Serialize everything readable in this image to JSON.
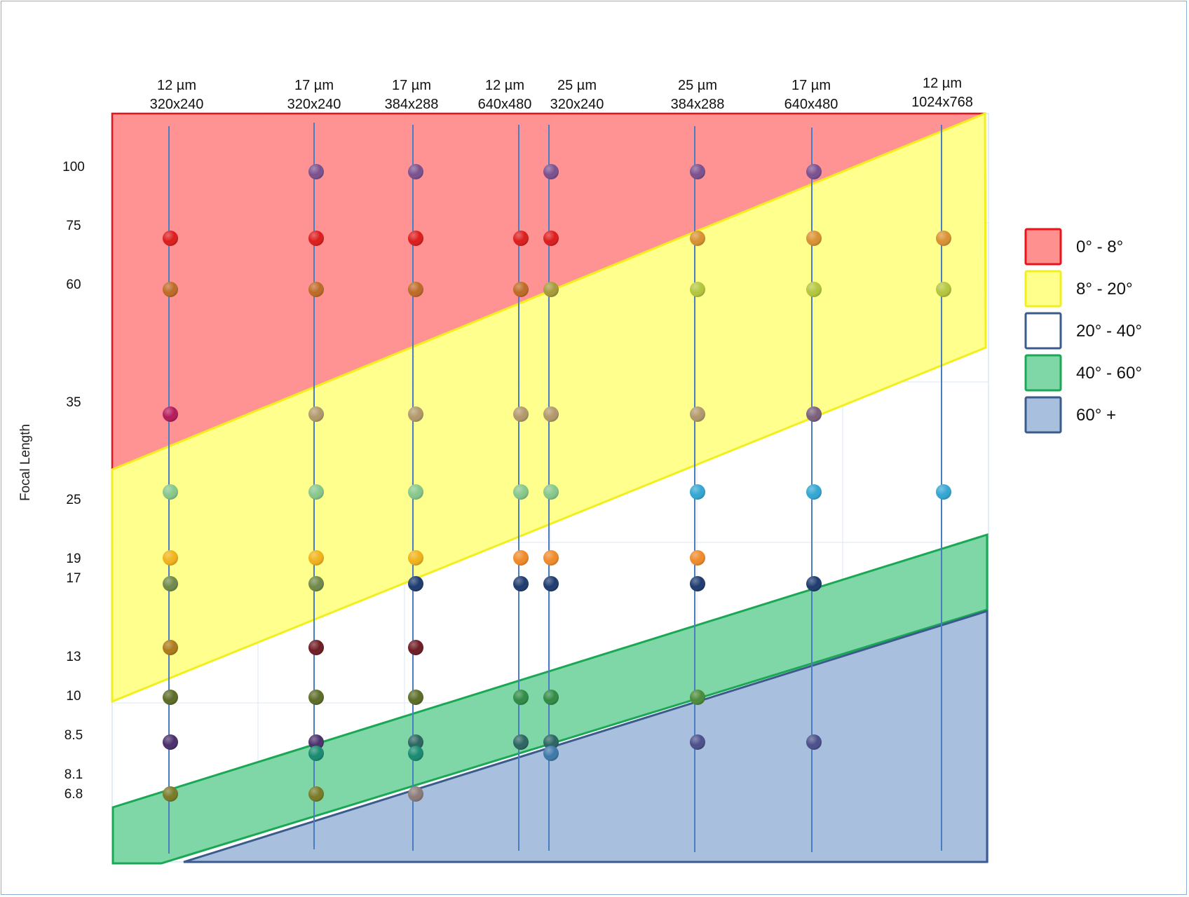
{
  "chart_data": {
    "type": "scatter",
    "ylabel": "Focal Length",
    "x": [
      {
        "line1": "12 µm",
        "line2": "320x240"
      },
      {
        "line1": "17 µm",
        "line2": "320x240"
      },
      {
        "line1": "17 µm",
        "line2": "384x288"
      },
      {
        "line1": "12 µm",
        "line2": "640x480"
      },
      {
        "line1": "25 µm",
        "line2": "320x240"
      },
      {
        "line1": "25 µm",
        "line2": "384x288"
      },
      {
        "line1": "17 µm",
        "line2": "640x480"
      },
      {
        "line1": "12 µm",
        "line2": "1024x768"
      }
    ],
    "y_ticks": [
      "100",
      "75",
      "60",
      "35",
      "25",
      "19",
      "17",
      "13",
      "10",
      "8.5",
      "8.1",
      "6.8"
    ],
    "legend": [
      {
        "label": "0° - 8°",
        "fill": "#ff9090",
        "stroke": "#e8131b"
      },
      {
        "label": "8° - 20°",
        "fill": "#ffff8c",
        "stroke": "#f2ef1e"
      },
      {
        "label": "20° - 40°",
        "fill": "#ffffff",
        "stroke": "#3b5b8c"
      },
      {
        "label": "40° - 60°",
        "fill": "#7fd6a6",
        "stroke": "#1aa855"
      },
      {
        "label": "60° +",
        "fill": "#a8bfde",
        "stroke": "#3b5b8c"
      }
    ],
    "legend_position": "right",
    "grid": true,
    "points": [
      {
        "x": 0,
        "y": "75",
        "color": "#dd1b1b"
      },
      {
        "x": 0,
        "y": "60",
        "color": "#bd6a25"
      },
      {
        "x": 0,
        "y": "35",
        "color": "#b5195a"
      },
      {
        "x": 0,
        "y": "25",
        "color": "#86c78a"
      },
      {
        "x": 0,
        "y": "19",
        "color": "#f1b21a"
      },
      {
        "x": 0,
        "y": "17",
        "color": "#6f8848"
      },
      {
        "x": 0,
        "y": "13",
        "color": "#ac7a1a"
      },
      {
        "x": 0,
        "y": "10",
        "color": "#5a6b26"
      },
      {
        "x": 0,
        "y": "8.5",
        "color": "#4a2e6a"
      },
      {
        "x": 0,
        "y": "6.8",
        "color": "#777a26"
      },
      {
        "x": 1,
        "y": "100",
        "color": "#7a4f8e"
      },
      {
        "x": 1,
        "y": "75",
        "color": "#dd1b1b"
      },
      {
        "x": 1,
        "y": "60",
        "color": "#bd6a25"
      },
      {
        "x": 1,
        "y": "35",
        "color": "#b1986a"
      },
      {
        "x": 1,
        "y": "25",
        "color": "#86c78a"
      },
      {
        "x": 1,
        "y": "19",
        "color": "#f1b21a"
      },
      {
        "x": 1,
        "y": "17",
        "color": "#6f8848"
      },
      {
        "x": 1,
        "y": "13",
        "color": "#6e1a22"
      },
      {
        "x": 1,
        "y": "10",
        "color": "#5a6b26"
      },
      {
        "x": 1,
        "y": "8.5",
        "color": "#4a2e6a"
      },
      {
        "x": 1,
        "y": "8.1",
        "color": "#168a6f"
      },
      {
        "x": 1,
        "y": "6.8",
        "color": "#777a26"
      },
      {
        "x": 2,
        "y": "100",
        "color": "#7a4f8e"
      },
      {
        "x": 2,
        "y": "75",
        "color": "#dd1b1b"
      },
      {
        "x": 2,
        "y": "60",
        "color": "#bd6a25"
      },
      {
        "x": 2,
        "y": "35",
        "color": "#b1986a"
      },
      {
        "x": 2,
        "y": "25",
        "color": "#86c78a"
      },
      {
        "x": 2,
        "y": "19",
        "color": "#f1b21a"
      },
      {
        "x": 2,
        "y": "17",
        "color": "#1d3a6e"
      },
      {
        "x": 2,
        "y": "13",
        "color": "#6e1a22"
      },
      {
        "x": 2,
        "y": "10",
        "color": "#5a6b26"
      },
      {
        "x": 2,
        "y": "8.5",
        "color": "#2a6460"
      },
      {
        "x": 2,
        "y": "8.1",
        "color": "#168a6f"
      },
      {
        "x": 2,
        "y": "6.8",
        "color": "#8a7a78"
      },
      {
        "x": 3,
        "y": "75",
        "color": "#dd1b1b"
      },
      {
        "x": 3,
        "y": "60",
        "color": "#bd6a25"
      },
      {
        "x": 3,
        "y": "35",
        "color": "#b1986a"
      },
      {
        "x": 3,
        "y": "25",
        "color": "#86c78a"
      },
      {
        "x": 3,
        "y": "19",
        "color": "#f08a2a"
      },
      {
        "x": 3,
        "y": "17",
        "color": "#1d3a6e"
      },
      {
        "x": 3,
        "y": "10",
        "color": "#2f8a45"
      },
      {
        "x": 3,
        "y": "8.5",
        "color": "#2a6460"
      },
      {
        "x": 4,
        "y": "100",
        "color": "#7a4f8e"
      },
      {
        "x": 4,
        "y": "75",
        "color": "#dd1b1b"
      },
      {
        "x": 4,
        "y": "60",
        "color": "#a79a3a"
      },
      {
        "x": 4,
        "y": "35",
        "color": "#b1986a"
      },
      {
        "x": 4,
        "y": "25",
        "color": "#86c78a"
      },
      {
        "x": 4,
        "y": "19",
        "color": "#f08a2a"
      },
      {
        "x": 4,
        "y": "17",
        "color": "#1d3a6e"
      },
      {
        "x": 4,
        "y": "10",
        "color": "#2f8a45"
      },
      {
        "x": 4,
        "y": "8.5",
        "color": "#2a6460"
      },
      {
        "x": 4,
        "y": "8.1",
        "color": "#3c78a8"
      },
      {
        "x": 5,
        "y": "100",
        "color": "#7a4f8e"
      },
      {
        "x": 5,
        "y": "75",
        "color": "#d99130"
      },
      {
        "x": 5,
        "y": "60",
        "color": "#b4c63c"
      },
      {
        "x": 5,
        "y": "35",
        "color": "#b1986a"
      },
      {
        "x": 5,
        "y": "25",
        "color": "#32a6d2"
      },
      {
        "x": 5,
        "y": "19",
        "color": "#f08a2a"
      },
      {
        "x": 5,
        "y": "17",
        "color": "#1d3a6e"
      },
      {
        "x": 5,
        "y": "10",
        "color": "#4a8a3a"
      },
      {
        "x": 5,
        "y": "8.5",
        "color": "#4a4e8a"
      },
      {
        "x": 6,
        "y": "100",
        "color": "#7a4f8e"
      },
      {
        "x": 6,
        "y": "75",
        "color": "#d99130"
      },
      {
        "x": 6,
        "y": "60",
        "color": "#b4c63c"
      },
      {
        "x": 6,
        "y": "35",
        "color": "#7a5e7a"
      },
      {
        "x": 6,
        "y": "25",
        "color": "#32a6d2"
      },
      {
        "x": 6,
        "y": "17",
        "color": "#1d3a6e"
      },
      {
        "x": 6,
        "y": "8.5",
        "color": "#4a4e8a"
      },
      {
        "x": 7,
        "y": "75",
        "color": "#d99130"
      },
      {
        "x": 7,
        "y": "60",
        "color": "#b4c63c"
      },
      {
        "x": 7,
        "y": "25",
        "color": "#32a6d2"
      }
    ]
  }
}
